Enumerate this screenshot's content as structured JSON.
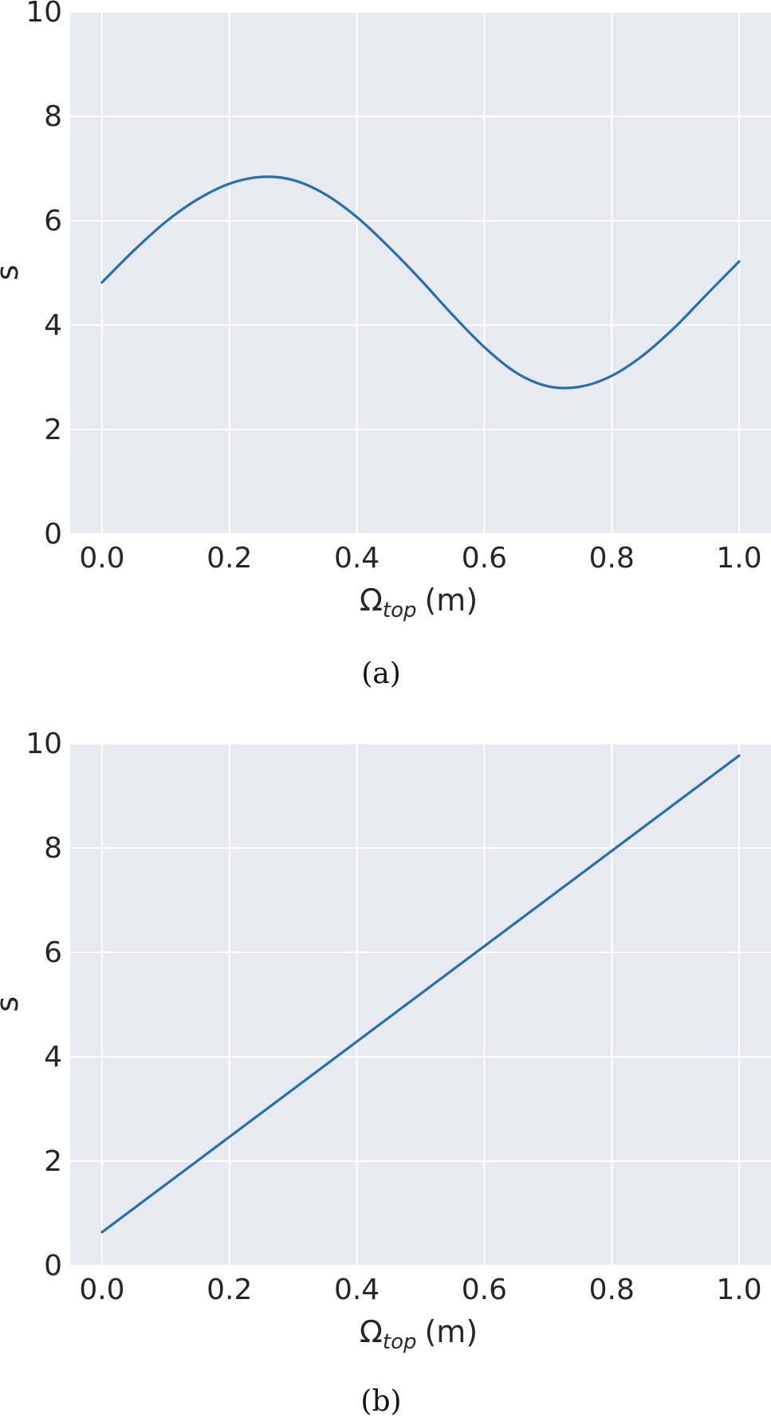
{
  "chart_data": [
    {
      "type": "line",
      "caption": "(a)",
      "xlabel_main": "Ω",
      "xlabel_sub": "top",
      "xlabel_unit": "(m)",
      "ylabel": "s",
      "xlim": [
        -0.05,
        1.05
      ],
      "ylim": [
        0,
        10
      ],
      "xticks": [
        "0.0",
        "0.2",
        "0.4",
        "0.6",
        "0.8",
        "1.0"
      ],
      "yticks": [
        "0",
        "2",
        "4",
        "6",
        "8",
        "10"
      ],
      "grid": true,
      "series": [
        {
          "color": "#2a6fa6",
          "x": [
            0.0,
            0.05,
            0.1,
            0.15,
            0.2,
            0.25,
            0.3,
            0.35,
            0.4,
            0.45,
            0.5,
            0.55,
            0.6,
            0.65,
            0.7,
            0.75,
            0.8,
            0.85,
            0.9,
            0.95,
            1.0
          ],
          "y": [
            4.82,
            5.43,
            5.98,
            6.41,
            6.71,
            6.84,
            6.78,
            6.51,
            6.07,
            5.5,
            4.87,
            4.2,
            3.58,
            3.09,
            2.83,
            2.82,
            3.03,
            3.43,
            3.97,
            4.6,
            5.22
          ]
        }
      ]
    },
    {
      "type": "line",
      "caption": "(b)",
      "xlabel_main": "Ω",
      "xlabel_sub": "top",
      "xlabel_unit": "(m)",
      "ylabel": "s",
      "xlim": [
        -0.05,
        1.05
      ],
      "ylim": [
        0,
        10
      ],
      "xticks": [
        "0.0",
        "0.2",
        "0.4",
        "0.6",
        "0.8",
        "1.0"
      ],
      "yticks": [
        "0",
        "2",
        "4",
        "6",
        "8",
        "10"
      ],
      "grid": true,
      "series": [
        {
          "color": "#2a6fa6",
          "x": [
            0.0,
            1.0
          ],
          "y": [
            0.64,
            9.77
          ]
        }
      ]
    }
  ]
}
